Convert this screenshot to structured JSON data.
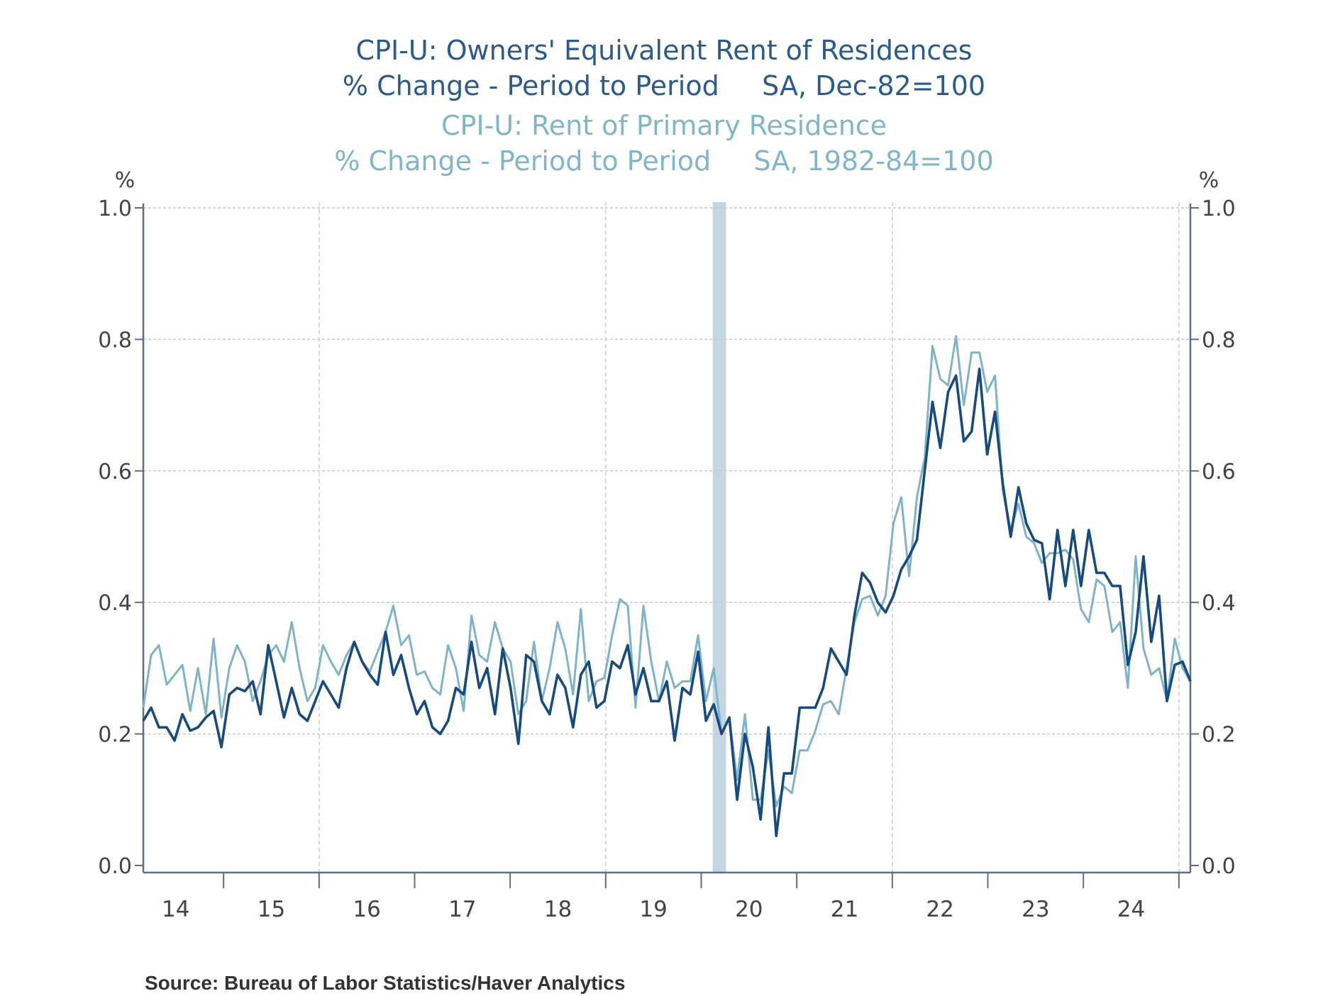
{
  "chart_data": {
    "type": "line",
    "title_lines": [
      "CPI-U: Owners' Equivalent Rent of Residences",
      "% Change - Period to Period     SA, Dec-82=100",
      "CPI-U: Rent of Primary Residence",
      "% Change - Period to Period     SA, 1982-84=100"
    ],
    "ylabel_left": "%",
    "ylabel_right": "%",
    "ylim": [
      0,
      1.0
    ],
    "yticks": [
      "0.0",
      "0.2",
      "0.4",
      "0.6",
      "0.8",
      "1.0"
    ],
    "yticks_values": [
      0,
      0.2,
      0.4,
      0.6,
      0.8,
      1.0
    ],
    "x_range_years": [
      2014.16,
      2025.12
    ],
    "xtick_labels": [
      "14",
      "15",
      "16",
      "17",
      "18",
      "19",
      "20",
      "21",
      "22",
      "23",
      "24"
    ],
    "xtick_years": [
      2014,
      2015,
      2016,
      2017,
      2018,
      2019,
      2020,
      2021,
      2022,
      2023,
      2024
    ],
    "grid": "dashed, horizontal at each y tick, vertical every 3 years",
    "recession_band": [
      2020.12,
      2020.26
    ],
    "frequency": "monthly",
    "series": [
      {
        "name": "CPI-U: Owners' Equivalent Rent of Residences",
        "color": "#174a7e",
        "values": [
          0.22,
          0.24,
          0.21,
          0.21,
          0.19,
          0.23,
          0.205,
          0.21,
          0.225,
          0.235,
          0.18,
          0.26,
          0.27,
          0.265,
          0.28,
          0.23,
          0.335,
          0.28,
          0.225,
          0.27,
          0.23,
          0.22,
          0.25,
          0.28,
          0.26,
          0.24,
          0.3,
          0.34,
          0.31,
          0.29,
          0.275,
          0.355,
          0.29,
          0.32,
          0.27,
          0.23,
          0.25,
          0.21,
          0.2,
          0.22,
          0.27,
          0.26,
          0.34,
          0.27,
          0.3,
          0.23,
          0.33,
          0.27,
          0.185,
          0.32,
          0.31,
          0.25,
          0.23,
          0.29,
          0.27,
          0.21,
          0.29,
          0.31,
          0.24,
          0.25,
          0.31,
          0.3,
          0.335,
          0.26,
          0.3,
          0.25,
          0.25,
          0.28,
          0.19,
          0.27,
          0.26,
          0.325,
          0.22,
          0.245,
          0.2,
          0.225,
          0.1,
          0.2,
          0.15,
          0.07,
          0.21,
          0.045,
          0.14,
          0.14,
          0.24,
          0.24,
          0.24,
          0.27,
          0.33,
          0.31,
          0.29,
          0.38,
          0.445,
          0.43,
          0.4,
          0.385,
          0.41,
          0.45,
          0.47,
          0.495,
          0.6,
          0.705,
          0.635,
          0.72,
          0.745,
          0.645,
          0.66,
          0.755,
          0.625,
          0.69,
          0.58,
          0.5,
          0.575,
          0.52,
          0.495,
          0.49,
          0.405,
          0.51,
          0.425,
          0.51,
          0.425,
          0.51,
          0.445,
          0.445,
          0.425,
          0.425,
          0.305,
          0.355,
          0.47,
          0.34,
          0.41,
          0.25,
          0.305,
          0.31,
          0.28
        ]
      },
      {
        "name": "CPI-U: Rent of Primary Residence",
        "color": "#7fb3c8",
        "values": [
          0.24,
          0.32,
          0.335,
          0.275,
          0.29,
          0.305,
          0.235,
          0.3,
          0.23,
          0.345,
          0.225,
          0.3,
          0.335,
          0.31,
          0.25,
          0.28,
          0.32,
          0.335,
          0.31,
          0.37,
          0.3,
          0.25,
          0.27,
          0.335,
          0.31,
          0.29,
          0.32,
          0.34,
          0.31,
          0.295,
          0.325,
          0.355,
          0.395,
          0.335,
          0.35,
          0.29,
          0.295,
          0.27,
          0.26,
          0.335,
          0.3,
          0.235,
          0.38,
          0.32,
          0.31,
          0.37,
          0.33,
          0.31,
          0.23,
          0.25,
          0.34,
          0.25,
          0.3,
          0.37,
          0.33,
          0.26,
          0.39,
          0.25,
          0.28,
          0.285,
          0.35,
          0.405,
          0.395,
          0.24,
          0.395,
          0.31,
          0.25,
          0.31,
          0.27,
          0.28,
          0.28,
          0.35,
          0.25,
          0.3,
          0.2,
          0.225,
          0.13,
          0.23,
          0.1,
          0.1,
          0.175,
          0.09,
          0.12,
          0.11,
          0.175,
          0.175,
          0.205,
          0.245,
          0.25,
          0.23,
          0.3,
          0.37,
          0.405,
          0.41,
          0.38,
          0.41,
          0.52,
          0.56,
          0.44,
          0.56,
          0.62,
          0.79,
          0.74,
          0.73,
          0.805,
          0.7,
          0.78,
          0.78,
          0.72,
          0.745,
          0.57,
          0.51,
          0.55,
          0.5,
          0.49,
          0.46,
          0.475,
          0.475,
          0.48,
          0.465,
          0.39,
          0.37,
          0.435,
          0.425,
          0.355,
          0.37,
          0.27,
          0.47,
          0.33,
          0.29,
          0.3,
          0.25,
          0.345,
          0.3,
          0.28
        ]
      }
    ],
    "source": "Source:  Bureau of Labor Statistics/Haver Analytics"
  }
}
